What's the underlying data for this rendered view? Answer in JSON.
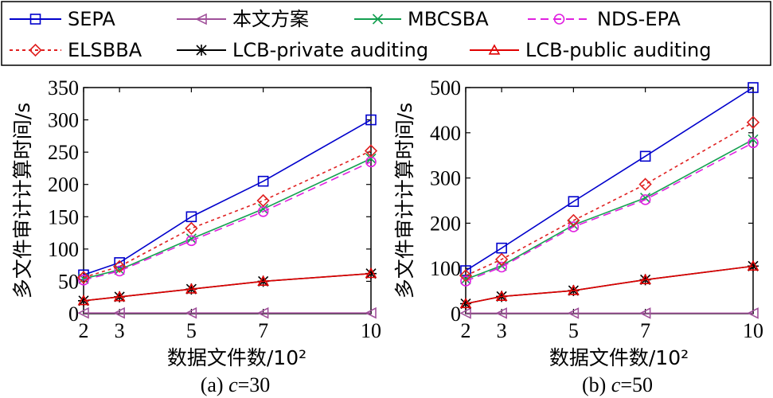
{
  "legend": {
    "entries": [
      {
        "name": "SEPA",
        "color": "#0000cc",
        "marker": "square",
        "dash": ""
      },
      {
        "name": "本文方案",
        "color": "#a0509a",
        "marker": "triangle-left",
        "dash": ""
      },
      {
        "name": "MBCSBA",
        "color": "#14a050",
        "marker": "x",
        "dash": ""
      },
      {
        "name": "NDS-EPA",
        "color": "#e020e0",
        "marker": "circle",
        "dash": "10,6"
      },
      {
        "name": "ELSBBA",
        "color": "#e02020",
        "marker": "diamond",
        "dash": "4,4"
      },
      {
        "name": "LCB-private auditing",
        "color": "#000000",
        "marker": "asterisk",
        "dash": ""
      },
      {
        "name": "LCB-public auditing",
        "color": "#e00000",
        "marker": "triangle-up",
        "dash": ""
      }
    ]
  },
  "chart_data": [
    {
      "type": "line",
      "caption": "(a) c=30",
      "caption_prefix": "(a) ",
      "caption_var": "c",
      "caption_rest": "=30",
      "xlabel": "数据文件数/10²",
      "ylabel": "多文件审计计算时间/s",
      "x": [
        2,
        3,
        5,
        7,
        10
      ],
      "xlim": [
        2,
        10
      ],
      "ylim": [
        0,
        350
      ],
      "xticks": [
        "2",
        "3",
        "5",
        "7",
        "10"
      ],
      "yticks": [
        "0",
        "50",
        "100",
        "150",
        "200",
        "250",
        "300",
        "350"
      ],
      "series": [
        {
          "name": "SEPA",
          "values": [
            60,
            79,
            150,
            205,
            300
          ]
        },
        {
          "name": "本文方案",
          "values": [
            1,
            1,
            1,
            1,
            1
          ]
        },
        {
          "name": "MBCSBA",
          "values": [
            54,
            68,
            116,
            162,
            240
          ]
        },
        {
          "name": "NDS-EPA",
          "values": [
            52,
            66,
            113,
            158,
            235
          ]
        },
        {
          "name": "ELSBBA",
          "values": [
            56,
            73,
            132,
            175,
            252
          ]
        },
        {
          "name": "LCB-private auditing",
          "values": [
            20,
            26,
            38,
            50,
            62
          ]
        },
        {
          "name": "LCB-public auditing",
          "values": [
            20,
            26,
            38,
            50,
            62
          ]
        }
      ]
    },
    {
      "type": "line",
      "caption": "(b) c=50",
      "caption_prefix": "(b) ",
      "caption_var": "c",
      "caption_rest": "=50",
      "xlabel": "数据文件数/10²",
      "ylabel": "多文件审计计算时间/s",
      "x": [
        2,
        3,
        5,
        7,
        10
      ],
      "xlim": [
        2,
        10
      ],
      "ylim": [
        0,
        500
      ],
      "xticks": [
        "2",
        "3",
        "5",
        "7",
        "10"
      ],
      "yticks": [
        "0",
        "100",
        "200",
        "300",
        "400",
        "500"
      ],
      "series": [
        {
          "name": "SEPA",
          "values": [
            95,
            145,
            248,
            348,
            500
          ]
        },
        {
          "name": "本文方案",
          "values": [
            1,
            1,
            1,
            1,
            1
          ]
        },
        {
          "name": "MBCSBA",
          "values": [
            76,
            106,
            196,
            256,
            385
          ]
        },
        {
          "name": "NDS-EPA",
          "values": [
            72,
            103,
            192,
            252,
            378
          ]
        },
        {
          "name": "ELSBBA",
          "values": [
            84,
            120,
            206,
            286,
            423
          ]
        },
        {
          "name": "LCB-private auditing",
          "values": [
            22,
            38,
            51,
            75,
            105
          ]
        },
        {
          "name": "LCB-public auditing",
          "values": [
            22,
            38,
            51,
            75,
            105
          ]
        }
      ]
    }
  ]
}
